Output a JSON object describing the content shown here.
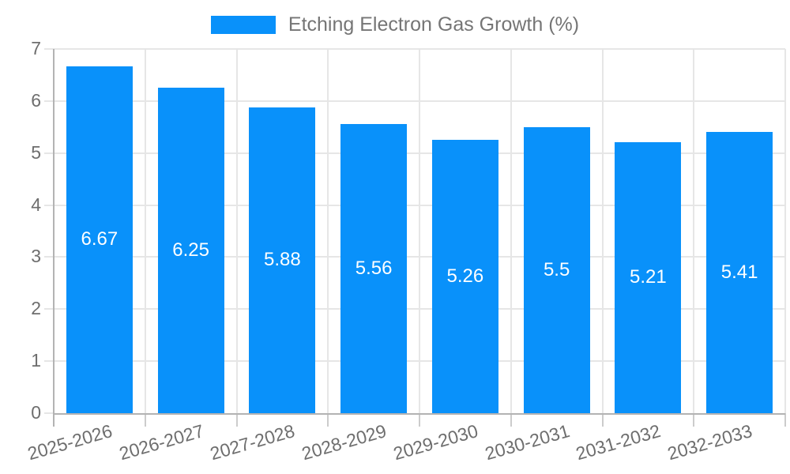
{
  "chart_data": {
    "type": "bar",
    "legend": {
      "label": "Etching Electron Gas Growth (%)",
      "position": "top"
    },
    "categories": [
      "2025-2026",
      "2026-2027",
      "2027-2028",
      "2028-2029",
      "2029-2030",
      "2030-2031",
      "2031-2032",
      "2032-2033"
    ],
    "values": [
      6.67,
      6.25,
      5.88,
      5.56,
      5.26,
      5.5,
      5.21,
      5.41
    ],
    "value_labels": [
      "6.67",
      "6.25",
      "5.88",
      "5.56",
      "5.26",
      "5.5",
      "5.21",
      "5.41"
    ],
    "xlabel": "",
    "ylabel": "",
    "ylim": [
      0,
      7
    ],
    "yticks": [
      0,
      1,
      2,
      3,
      4,
      5,
      6,
      7
    ],
    "grid": true,
    "value_label_position": "center-of-bar",
    "colors": {
      "bar": "#0991fa",
      "grid": "#e6e6e6",
      "axis": "#b3b3b3",
      "tick_text": "#6e6e6e",
      "legend_text": "#757575",
      "value_text": "#ffffff",
      "background": "#ffffff"
    }
  }
}
